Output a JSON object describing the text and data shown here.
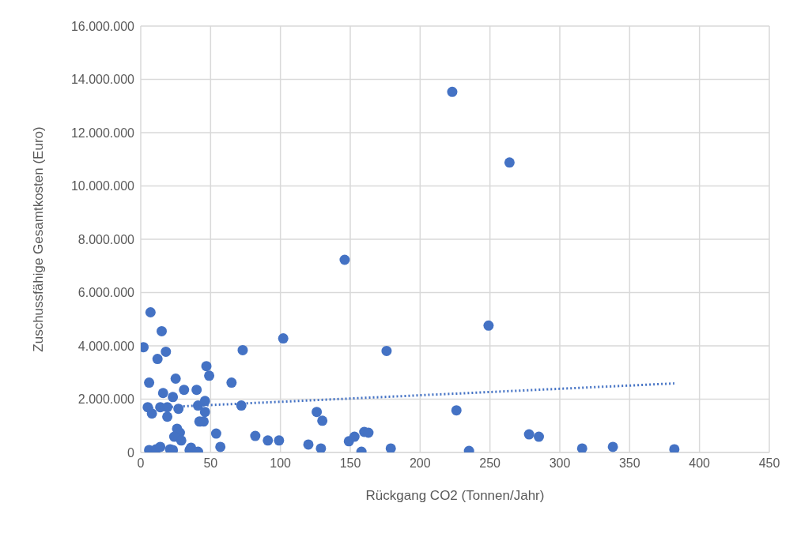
{
  "chart_data": {
    "type": "scatter",
    "xlabel": "Rückgang CO2 (Tonnen/Jahr)",
    "ylabel": "Zuschussfähige Gesamtkosten (Euro)",
    "xlim": [
      0,
      450
    ],
    "xticks": [
      0,
      50,
      100,
      150,
      200,
      250,
      300,
      350,
      400,
      450
    ],
    "ylim": [
      0,
      16000000
    ],
    "yticks": [
      {
        "value": 0,
        "label": "0"
      },
      {
        "value": 2000000,
        "label": "2.000.000"
      },
      {
        "value": 4000000,
        "label": "4.000.000"
      },
      {
        "value": 6000000,
        "label": "6.000.000"
      },
      {
        "value": 8000000,
        "label": "8.000.000"
      },
      {
        "value": 10000000,
        "label": "10.000.000"
      },
      {
        "value": 12000000,
        "label": "12.000.000"
      },
      {
        "value": 14000000,
        "label": "14.000.000"
      },
      {
        "value": 16000000,
        "label": "16.000.000"
      }
    ],
    "grid": true,
    "marker": "circle",
    "series": [
      {
        "type": "scatter",
        "color": "#4472c4",
        "x": [
          2,
          7,
          15,
          18,
          12,
          6,
          25,
          31,
          40,
          47,
          49,
          16,
          23,
          5,
          8,
          14,
          19,
          27,
          19,
          41,
          46,
          46,
          42,
          45,
          26,
          28,
          24,
          29,
          6,
          11,
          14,
          21,
          23,
          35,
          36,
          41,
          54,
          57,
          65,
          73,
          72,
          82,
          91,
          99,
          102,
          120,
          126,
          130,
          129,
          146,
          149,
          153,
          158,
          160,
          163,
          176,
          179,
          223,
          226,
          235,
          264,
          249,
          278,
          285,
          316,
          338,
          382
        ],
        "values": [
          3950000,
          5260000,
          4550000,
          3780000,
          3510000,
          2620000,
          2770000,
          2350000,
          2350000,
          3240000,
          2880000,
          2230000,
          2080000,
          1700000,
          1460000,
          1700000,
          1700000,
          1640000,
          1340000,
          1760000,
          1930000,
          1520000,
          1160000,
          1160000,
          890000,
          740000,
          590000,
          450000,
          90000,
          120000,
          210000,
          120000,
          90000,
          90000,
          180000,
          30000,
          710000,
          210000,
          2620000,
          3840000,
          1760000,
          620000,
          450000,
          450000,
          4280000,
          300000,
          1520000,
          1190000,
          150000,
          7230000,
          420000,
          590000,
          30000,
          770000,
          740000,
          3810000,
          150000,
          13530000,
          1580000,
          60000,
          10880000,
          4760000,
          680000,
          590000,
          150000,
          210000,
          120000
        ]
      },
      {
        "type": "line",
        "color": "#4472c4",
        "line_style": "dotted",
        "marker": "none",
        "x": [
          5,
          382
        ],
        "values": [
          1670000,
          2590000
        ]
      }
    ]
  }
}
